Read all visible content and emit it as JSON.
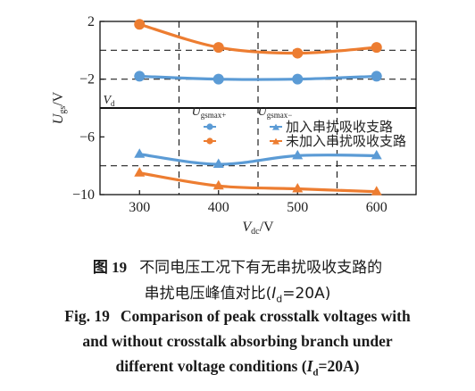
{
  "chart_data": {
    "type": "line",
    "x": [
      300,
      400,
      500,
      600
    ],
    "series": [
      {
        "name": "加入串扰吸收支路",
        "marker": "triangle",
        "values": [
          -7.2,
          -7.9,
          -7.3,
          -7.3
        ],
        "color": "#5b9bd5"
      },
      {
        "name": "未加入串扰吸收支路",
        "marker": "triangle",
        "values": [
          -8.5,
          -9.4,
          -9.6,
          -9.8
        ],
        "color": "#ed7d31"
      },
      {
        "name": "加入串扰吸收支路",
        "marker": "circle",
        "values": [
          -1.8,
          -2.0,
          -2.0,
          -1.8
        ],
        "color": "#5b9bd5"
      },
      {
        "name": "未加入串扰吸收支路",
        "marker": "circle",
        "values": [
          1.8,
          0.2,
          -0.2,
          0.2
        ],
        "color": "#ed7d31"
      }
    ],
    "xlim": [
      250,
      650
    ],
    "ylim": [
      -10,
      2
    ],
    "xticks": [
      "300",
      "400",
      "500",
      "600"
    ],
    "yticks": [
      "2",
      "−2",
      "−6",
      "−10"
    ],
    "ytick_values": [
      2,
      -2,
      -6,
      -10
    ],
    "xlabel": "V",
    "xlabel_sub": "dc",
    "xlabel_unit": "/V",
    "ylabel": "U",
    "ylabel_sub": "gs",
    "ylabel_unit": "/V",
    "vd_value": -4,
    "vd_label": "V",
    "vd_label_sub": "d",
    "dashed_h": [
      0,
      -2,
      -8
    ],
    "dashed_v": [
      350,
      450,
      550
    ],
    "legend_header": [
      {
        "main": "U",
        "sub": "gsmax+"
      },
      {
        "main": "U",
        "sub": "gsmax−"
      }
    ],
    "legend_labels": [
      "加入串扰吸收支路",
      "未加入串扰吸收支路"
    ],
    "colors": {
      "blue": "#5b9bd5",
      "orange": "#ed7d31"
    }
  },
  "caption": {
    "cn_figno": "图 19",
    "cn_line1": "不同电压工况下有无串扰吸收支路的",
    "cn_line2_pre": "串扰电压峰值对比(",
    "cn_line2_var": "I",
    "cn_line2_sub": "d",
    "cn_line2_post": "=20A)",
    "en_figno": "Fig. 19",
    "en_line1": "Comparison of peak crosstalk voltages with",
    "en_line2": "and without crosstalk absorbing branch under",
    "en_line3_pre": "different voltage conditions (",
    "en_line3_var": "I",
    "en_line3_sub": "d",
    "en_line3_post": "=20A)"
  }
}
